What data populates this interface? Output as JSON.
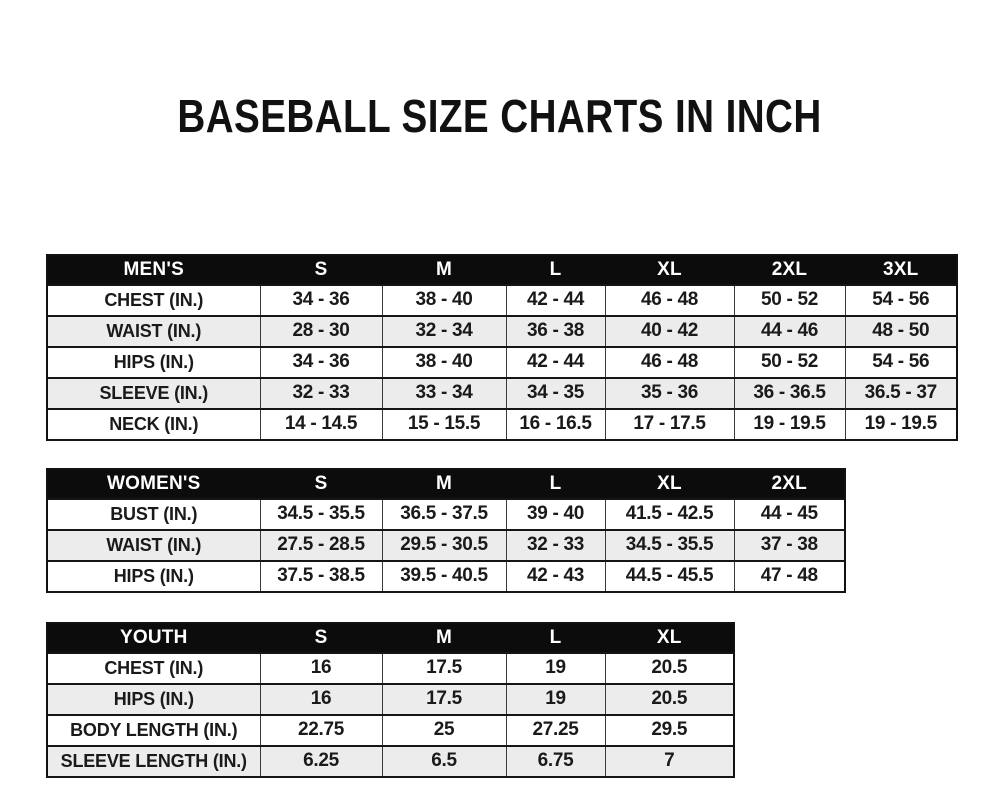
{
  "page": {
    "title": "BASEBALL SIZE CHARTS IN INCH"
  },
  "colors": {
    "header_bg": "#0c0c0c",
    "header_text": "#ffffff",
    "row_bg": "#ffffff",
    "row_alt_bg": "#ececec",
    "border": "#111111",
    "text": "#1a1a1a"
  },
  "tables": [
    {
      "name": "mens",
      "header": [
        "MEN'S",
        "S",
        "M",
        "L",
        "XL",
        "2XL",
        "3XL"
      ],
      "rows": [
        {
          "label": "CHEST (IN.)",
          "values": [
            "34 - 36",
            "38 - 40",
            "42 - 44",
            "46 - 48",
            "50 - 52",
            "54 - 56"
          ]
        },
        {
          "label": "WAIST (IN.)",
          "values": [
            "28 - 30",
            "32 - 34",
            "36 - 38",
            "40 - 42",
            "44 - 46",
            "48 - 50"
          ]
        },
        {
          "label": "HIPS (IN.)",
          "values": [
            "34 - 36",
            "38 - 40",
            "42 - 44",
            "46 - 48",
            "50 - 52",
            "54 - 56"
          ]
        },
        {
          "label": "SLEEVE (IN.)",
          "values": [
            "32 - 33",
            "33 - 34",
            "34 - 35",
            "35 - 36",
            "36 - 36.5",
            "36.5 - 37"
          ]
        },
        {
          "label": "NECK (IN.)",
          "values": [
            "14 - 14.5",
            "15 - 15.5",
            "16 - 16.5",
            "17 - 17.5",
            "19 - 19.5",
            "19 - 19.5"
          ]
        }
      ]
    },
    {
      "name": "womens",
      "header": [
        "WOMEN'S",
        "S",
        "M",
        "L",
        "XL",
        "2XL"
      ],
      "rows": [
        {
          "label": "BUST (IN.)",
          "values": [
            "34.5 - 35.5",
            "36.5 - 37.5",
            "39 - 40",
            "41.5 - 42.5",
            "44 - 45"
          ]
        },
        {
          "label": "WAIST (IN.)",
          "values": [
            "27.5 - 28.5",
            "29.5 - 30.5",
            "32 - 33",
            "34.5 - 35.5",
            "37 - 38"
          ]
        },
        {
          "label": "HIPS (IN.)",
          "values": [
            "37.5 - 38.5",
            "39.5 - 40.5",
            "42 - 43",
            "44.5 - 45.5",
            "47 - 48"
          ]
        }
      ]
    },
    {
      "name": "youth",
      "header": [
        "YOUTH",
        "S",
        "M",
        "L",
        "XL"
      ],
      "rows": [
        {
          "label": "CHEST (IN.)",
          "values": [
            "16",
            "17.5",
            "19",
            "20.5"
          ]
        },
        {
          "label": "HIPS (IN.)",
          "values": [
            "16",
            "17.5",
            "19",
            "20.5"
          ]
        },
        {
          "label": "BODY LENGTH (IN.)",
          "values": [
            "22.75",
            "25",
            "27.25",
            "29.5"
          ]
        },
        {
          "label": "SLEEVE LENGTH (IN.)",
          "values": [
            "6.25",
            "6.5",
            "6.75",
            "7"
          ]
        }
      ]
    }
  ]
}
